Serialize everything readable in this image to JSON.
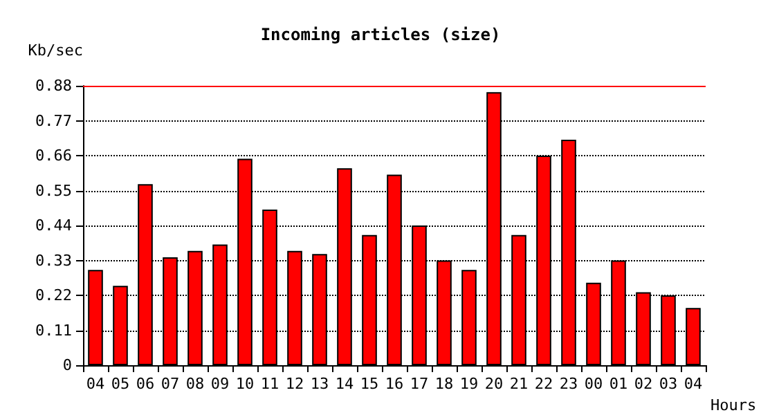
{
  "chart_data": {
    "type": "bar",
    "title": "Incoming articles (size)",
    "xlabel": "Hours",
    "ylabel": "Kb/sec",
    "categories": [
      "04",
      "05",
      "06",
      "07",
      "08",
      "09",
      "10",
      "11",
      "12",
      "13",
      "14",
      "15",
      "16",
      "17",
      "18",
      "19",
      "20",
      "21",
      "22",
      "23",
      "00",
      "01",
      "02",
      "03",
      "04"
    ],
    "values": [
      0.3,
      0.25,
      0.57,
      0.34,
      0.36,
      0.38,
      0.65,
      0.49,
      0.36,
      0.35,
      0.62,
      0.41,
      0.6,
      0.44,
      0.33,
      0.3,
      0.86,
      0.41,
      0.66,
      0.71,
      0.26,
      0.33,
      0.23,
      0.22,
      0.18
    ],
    "color": "#ff0000",
    "ylim": [
      0,
      0.88
    ],
    "yticks": [
      0,
      0.11,
      0.22,
      0.33,
      0.44,
      0.55,
      0.66,
      0.77,
      0.88
    ],
    "grid": "y",
    "line_style": "dotted",
    "ref_lines": [
      {
        "axis": "y",
        "value": 0.88,
        "color": "#ff0000"
      }
    ]
  }
}
